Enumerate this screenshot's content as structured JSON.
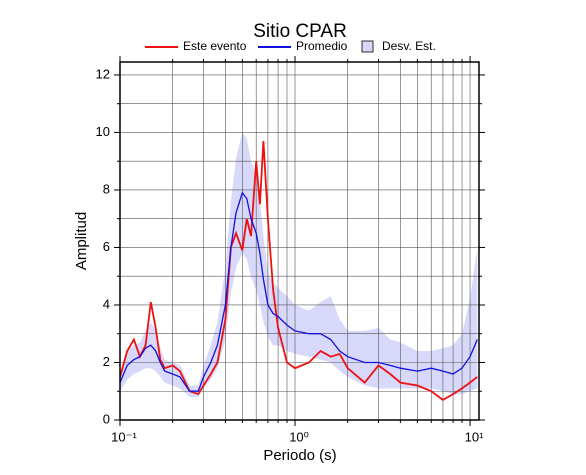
{
  "chart_data": {
    "type": "line",
    "title": "Sitio CPAR",
    "xlabel": "Periodo (s)",
    "ylabel": "Amplitud",
    "xscale": "log",
    "grid": true,
    "x": [
      0.1,
      0.11,
      0.12,
      0.13,
      0.14,
      0.15,
      0.16,
      0.17,
      0.18,
      0.2,
      0.22,
      0.25,
      0.28,
      0.3,
      0.33,
      0.36,
      0.4,
      0.43,
      0.46,
      0.5,
      0.53,
      0.56,
      0.6,
      0.63,
      0.66,
      0.7,
      0.75,
      0.8,
      0.9,
      1.0,
      1.2,
      1.4,
      1.6,
      1.8,
      2.0,
      2.5,
      3.0,
      3.5,
      4.0,
      5.0,
      6.0,
      7.0,
      8.0,
      9.0,
      10,
      11
    ],
    "series": [
      {
        "name": "Este evento",
        "color": "#ee1111",
        "values": [
          1.5,
          2.4,
          2.8,
          2.2,
          2.6,
          4.1,
          3.2,
          2.1,
          1.8,
          1.9,
          1.7,
          1.0,
          0.9,
          1.2,
          1.6,
          2.0,
          3.5,
          6.0,
          6.5,
          5.9,
          7.0,
          6.4,
          9.0,
          7.5,
          9.7,
          7.0,
          4.5,
          3.2,
          2.0,
          1.8,
          2.0,
          2.4,
          2.2,
          2.3,
          1.8,
          1.3,
          1.9,
          1.6,
          1.3,
          1.2,
          1.0,
          0.7,
          0.9,
          1.1,
          1.3,
          1.5
        ]
      },
      {
        "name": "Promedio",
        "color": "#1111dd",
        "values": [
          1.3,
          1.9,
          2.1,
          2.2,
          2.5,
          2.6,
          2.4,
          2.0,
          1.7,
          1.6,
          1.5,
          1.0,
          1.0,
          1.5,
          2.0,
          2.6,
          4.0,
          6.0,
          7.2,
          7.9,
          7.7,
          7.0,
          6.5,
          5.8,
          4.9,
          4.0,
          3.7,
          3.6,
          3.3,
          3.1,
          3.0,
          3.0,
          2.8,
          2.4,
          2.2,
          2.0,
          2.0,
          1.9,
          1.8,
          1.7,
          1.8,
          1.7,
          1.6,
          1.8,
          2.2,
          2.8
        ]
      },
      {
        "name": "Desv. Est.",
        "color": "#d8d8fa",
        "type": "band",
        "lower": [
          1.0,
          1.4,
          1.6,
          1.7,
          1.8,
          1.8,
          1.7,
          1.5,
          1.3,
          1.2,
          1.1,
          0.8,
          0.8,
          1.1,
          1.4,
          1.8,
          2.8,
          4.4,
          5.3,
          5.8,
          5.6,
          5.0,
          4.5,
          4.0,
          3.4,
          2.9,
          2.6,
          2.6,
          2.4,
          2.3,
          2.2,
          2.1,
          2.0,
          1.7,
          1.5,
          1.2,
          1.1,
          1.1,
          1.1,
          1.1,
          1.1,
          1.0,
          0.9,
          0.9,
          1.0,
          1.1
        ],
        "upper": [
          1.6,
          2.4,
          2.6,
          2.7,
          3.1,
          3.4,
          3.1,
          2.5,
          2.1,
          2.0,
          1.9,
          1.2,
          1.2,
          1.9,
          2.6,
          3.4,
          5.3,
          7.6,
          9.1,
          10.0,
          9.8,
          9.0,
          8.5,
          7.6,
          6.4,
          5.1,
          4.8,
          4.6,
          4.3,
          4.0,
          3.8,
          4.1,
          4.3,
          3.5,
          3.1,
          3.1,
          3.2,
          2.8,
          2.7,
          2.4,
          2.4,
          2.5,
          2.6,
          3.0,
          4.2,
          6.0
        ]
      }
    ],
    "xlim": [
      0.1,
      11.25
    ],
    "ylim": [
      0,
      12.45
    ],
    "xticks": [
      {
        "value": 0.1,
        "label": "10⁻¹"
      },
      {
        "value": 1,
        "label": "10⁰"
      },
      {
        "value": 10,
        "label": "10¹"
      }
    ],
    "xminorticks": [
      0.2,
      0.3,
      0.4,
      0.5,
      0.6,
      0.7,
      0.8,
      0.9,
      2,
      3,
      4,
      5,
      6,
      7,
      8,
      9
    ],
    "yticks": [
      0,
      2,
      4,
      6,
      8,
      10,
      12
    ],
    "yminorticks": [
      1,
      3,
      5,
      7,
      9,
      11
    ]
  }
}
